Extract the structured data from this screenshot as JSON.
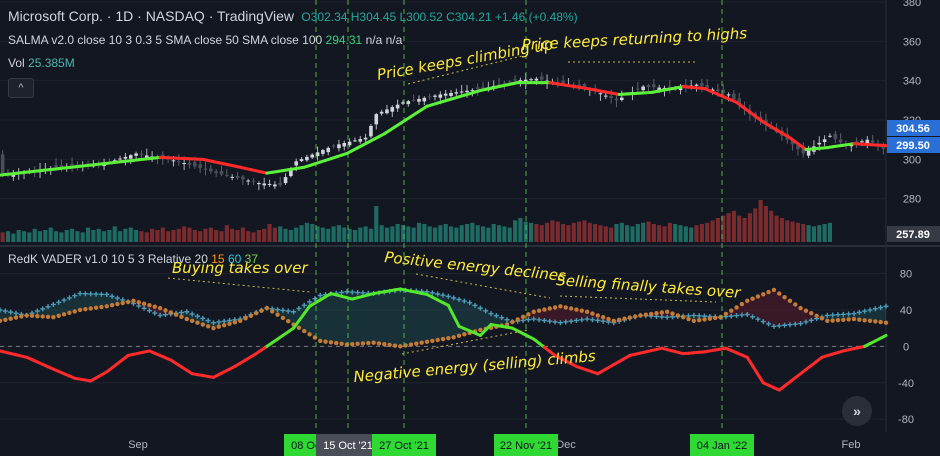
{
  "header": {
    "symbol": "Microsoft Corp. · 1D · NASDAQ · TradingView",
    "ohlc": "O302.34 H304.45 L300.52 C304.21 +1.46 (+0.48%)",
    "salma_label": "SALMA v2.0 close 10 3 0.3 5 SMA close 50 SMA close 100",
    "salma_value": "294.31",
    "salma_na": "n/a n/a",
    "vol_label": "Vol",
    "vol_value": "25.385M"
  },
  "indicator": {
    "label": "RedK VADER v1.0 10 5 3 Relative 20",
    "v1": "15",
    "v2": "60",
    "v3": "37"
  },
  "buttons": {
    "collapse": "^",
    "scroll": "»"
  },
  "colors": {
    "background": "#131722",
    "up_candle": "#26a69a",
    "down_candle": "#ef5350",
    "salma_up": "#5cf23b",
    "salma_down": "#ff2a2a",
    "vader_net": "#54e82c",
    "positive_energy": "#4a9bb7",
    "negative_energy": "#c57b35",
    "annotation": "#ffeb3b",
    "marker_green": "#2fd832"
  },
  "chart_data": [
    {
      "type": "candlestick",
      "title": "Microsoft Corp. · 1D · NASDAQ",
      "x_tick_labels": [
        "Sep",
        "Dec",
        "Feb"
      ],
      "marked_dates": [
        "08 Oct '21",
        "15 Oct '21",
        "27 Oct '21",
        "22 Nov '21",
        "04 Jan '22"
      ],
      "hovered_date": "15 Oct '21",
      "y_axis": {
        "ylim": [
          257,
          381
        ],
        "ticks": [
          280,
          300,
          320,
          340,
          360,
          380
        ]
      },
      "price_labels": [
        "304.56",
        "299.50",
        "257.89"
      ],
      "series": [
        {
          "name": "Price",
          "approx_close_path": [
            [
              0,
              292
            ],
            [
              10,
              296
            ],
            [
              18,
              297
            ],
            [
              25,
              303
            ],
            [
              33,
              299
            ],
            [
              40,
              293
            ],
            [
              48,
              288
            ],
            [
              52,
              287
            ],
            [
              55,
              299
            ],
            [
              62,
              307
            ],
            [
              68,
              311
            ],
            [
              70,
              323
            ],
            [
              75,
              329
            ],
            [
              82,
              333
            ],
            [
              90,
              336
            ],
            [
              96,
              340
            ],
            [
              100,
              341
            ],
            [
              110,
              336
            ],
            [
              115,
              330
            ],
            [
              120,
              337
            ],
            [
              126,
              336
            ],
            [
              130,
              338
            ],
            [
              136,
              333
            ],
            [
              140,
              323
            ],
            [
              145,
              314
            ],
            [
              147,
              310
            ],
            [
              150,
              303
            ],
            [
              155,
              312
            ],
            [
              158,
              307
            ],
            [
              162,
              310
            ],
            [
              166,
              304
            ]
          ]
        },
        {
          "name": "SALMA",
          "approx_path": [
            [
              0,
              292
            ],
            [
              20,
              298
            ],
            [
              30,
              301
            ],
            [
              38,
              300
            ],
            [
              45,
              296
            ],
            [
              50,
              293
            ],
            [
              57,
              296
            ],
            [
              65,
              303
            ],
            [
              72,
              313
            ],
            [
              80,
              327
            ],
            [
              90,
              335
            ],
            [
              97,
              339
            ],
            [
              103,
              339
            ],
            [
              110,
              336
            ],
            [
              116,
              333
            ],
            [
              122,
              334
            ],
            [
              128,
              337
            ],
            [
              132,
              336
            ],
            [
              138,
              329
            ],
            [
              143,
              319
            ],
            [
              148,
              311
            ],
            [
              151,
              305
            ],
            [
              155,
              306
            ],
            [
              160,
              308
            ],
            [
              166,
              307
            ]
          ]
        },
        {
          "name": "Vol",
          "values": [
            8,
            9,
            7,
            10,
            9,
            8,
            11,
            9,
            10,
            12,
            9,
            8,
            10,
            11,
            9,
            8,
            12,
            10,
            11,
            9,
            10,
            13,
            9,
            11,
            12,
            10,
            9,
            8,
            11,
            10,
            12,
            9,
            10,
            11,
            13,
            12,
            10,
            9,
            11,
            12,
            10,
            9,
            14,
            11,
            10,
            12,
            9,
            8,
            10,
            11,
            15,
            12,
            13,
            11,
            10,
            12,
            14,
            16,
            15,
            13,
            12,
            11,
            13,
            14,
            12,
            11,
            10,
            12,
            13,
            11,
            30,
            14,
            12,
            13,
            15,
            14,
            13,
            12,
            16,
            15,
            13,
            12,
            14,
            15,
            13,
            12,
            14,
            15,
            16,
            14,
            13,
            12,
            15,
            14,
            13,
            12,
            18,
            20,
            17,
            16,
            15,
            14,
            16,
            18,
            17,
            15,
            14,
            16,
            17,
            18,
            16,
            15,
            14,
            13,
            12,
            15,
            16,
            14,
            13,
            15,
            16,
            17,
            15,
            14,
            13,
            16,
            15,
            14,
            13,
            12,
            14,
            15,
            16,
            18,
            20,
            22,
            24,
            26,
            22,
            20,
            24,
            28,
            35,
            30,
            26,
            22,
            20,
            18,
            17,
            16,
            15,
            14,
            13,
            14,
            15,
            16
          ]
        }
      ]
    },
    {
      "type": "line",
      "title": "RedK VADER v1.0 10 5 3 Relative 20",
      "y_axis": {
        "ylim": [
          -94,
          108
        ],
        "ticks": [
          -80,
          -40,
          0,
          40,
          80
        ],
        "zero_line": true
      },
      "series": [
        {
          "name": "15",
          "approx_path": [
            [
              0,
              -5
            ],
            [
              5,
              -12
            ],
            [
              10,
              -25
            ],
            [
              14,
              -35
            ],
            [
              17,
              -38
            ],
            [
              20,
              -28
            ],
            [
              24,
              -10
            ],
            [
              28,
              -5
            ],
            [
              32,
              -15
            ],
            [
              36,
              -30
            ],
            [
              40,
              -34
            ],
            [
              44,
              -22
            ],
            [
              48,
              -8
            ],
            [
              52,
              8
            ],
            [
              55,
              20
            ],
            [
              58,
              44
            ],
            [
              62,
              58
            ],
            [
              66,
              52
            ],
            [
              70,
              58
            ],
            [
              75,
              63
            ],
            [
              80,
              57
            ],
            [
              84,
              45
            ],
            [
              86,
              22
            ],
            [
              90,
              12
            ],
            [
              92,
              24
            ],
            [
              96,
              20
            ],
            [
              100,
              8
            ],
            [
              104,
              -10
            ],
            [
              108,
              -22
            ],
            [
              112,
              -30
            ],
            [
              118,
              -10
            ],
            [
              124,
              -2
            ],
            [
              128,
              -8
            ],
            [
              132,
              -6
            ],
            [
              136,
              -2
            ],
            [
              140,
              -12
            ],
            [
              143,
              -40
            ],
            [
              146,
              -48
            ],
            [
              150,
              -30
            ],
            [
              154,
              -12
            ],
            [
              158,
              -5
            ],
            [
              162,
              0
            ],
            [
              166,
              12
            ]
          ]
        },
        {
          "name": "60",
          "approx_path": [
            [
              0,
              40
            ],
            [
              5,
              34
            ],
            [
              10,
              46
            ],
            [
              15,
              58
            ],
            [
              20,
              57
            ],
            [
              25,
              47
            ],
            [
              30,
              34
            ],
            [
              35,
              38
            ],
            [
              40,
              26
            ],
            [
              45,
              30
            ],
            [
              50,
              42
            ],
            [
              55,
              38
            ],
            [
              60,
              56
            ],
            [
              65,
              60
            ],
            [
              70,
              58
            ],
            [
              75,
              62
            ],
            [
              80,
              60
            ],
            [
              84,
              55
            ],
            [
              88,
              48
            ],
            [
              92,
              36
            ],
            [
              96,
              27
            ],
            [
              100,
              30
            ],
            [
              105,
              26
            ],
            [
              110,
              30
            ],
            [
              115,
              26
            ],
            [
              120,
              34
            ],
            [
              125,
              32
            ],
            [
              130,
              34
            ],
            [
              135,
              32
            ],
            [
              140,
              35
            ],
            [
              145,
              22
            ],
            [
              150,
              25
            ],
            [
              155,
              34
            ],
            [
              160,
              36
            ],
            [
              166,
              44
            ]
          ]
        },
        {
          "name": "37",
          "approx_path": [
            [
              0,
              28
            ],
            [
              5,
              34
            ],
            [
              10,
              32
            ],
            [
              15,
              40
            ],
            [
              20,
              44
            ],
            [
              25,
              50
            ],
            [
              30,
              42
            ],
            [
              35,
              30
            ],
            [
              40,
              20
            ],
            [
              45,
              28
            ],
            [
              50,
              42
            ],
            [
              55,
              24
            ],
            [
              60,
              6
            ],
            [
              65,
              2
            ],
            [
              70,
              4
            ],
            [
              75,
              0
            ],
            [
              80,
              5
            ],
            [
              85,
              10
            ],
            [
              90,
              18
            ],
            [
              95,
              24
            ],
            [
              100,
              38
            ],
            [
              105,
              44
            ],
            [
              110,
              38
            ],
            [
              115,
              28
            ],
            [
              120,
              34
            ],
            [
              125,
              38
            ],
            [
              130,
              28
            ],
            [
              135,
              32
            ],
            [
              140,
              50
            ],
            [
              145,
              62
            ],
            [
              150,
              42
            ],
            [
              155,
              28
            ],
            [
              160,
              30
            ],
            [
              166,
              26
            ]
          ]
        }
      ]
    }
  ],
  "annotations": [
    {
      "text": "Price keeps climbing up"
    },
    {
      "text": "Price keeps returning to highs"
    },
    {
      "text": "Buying takes over"
    },
    {
      "text": "Positive energy declines"
    },
    {
      "text": "Selling finally takes over"
    },
    {
      "text": "Negative energy (selling) climbs"
    }
  ]
}
